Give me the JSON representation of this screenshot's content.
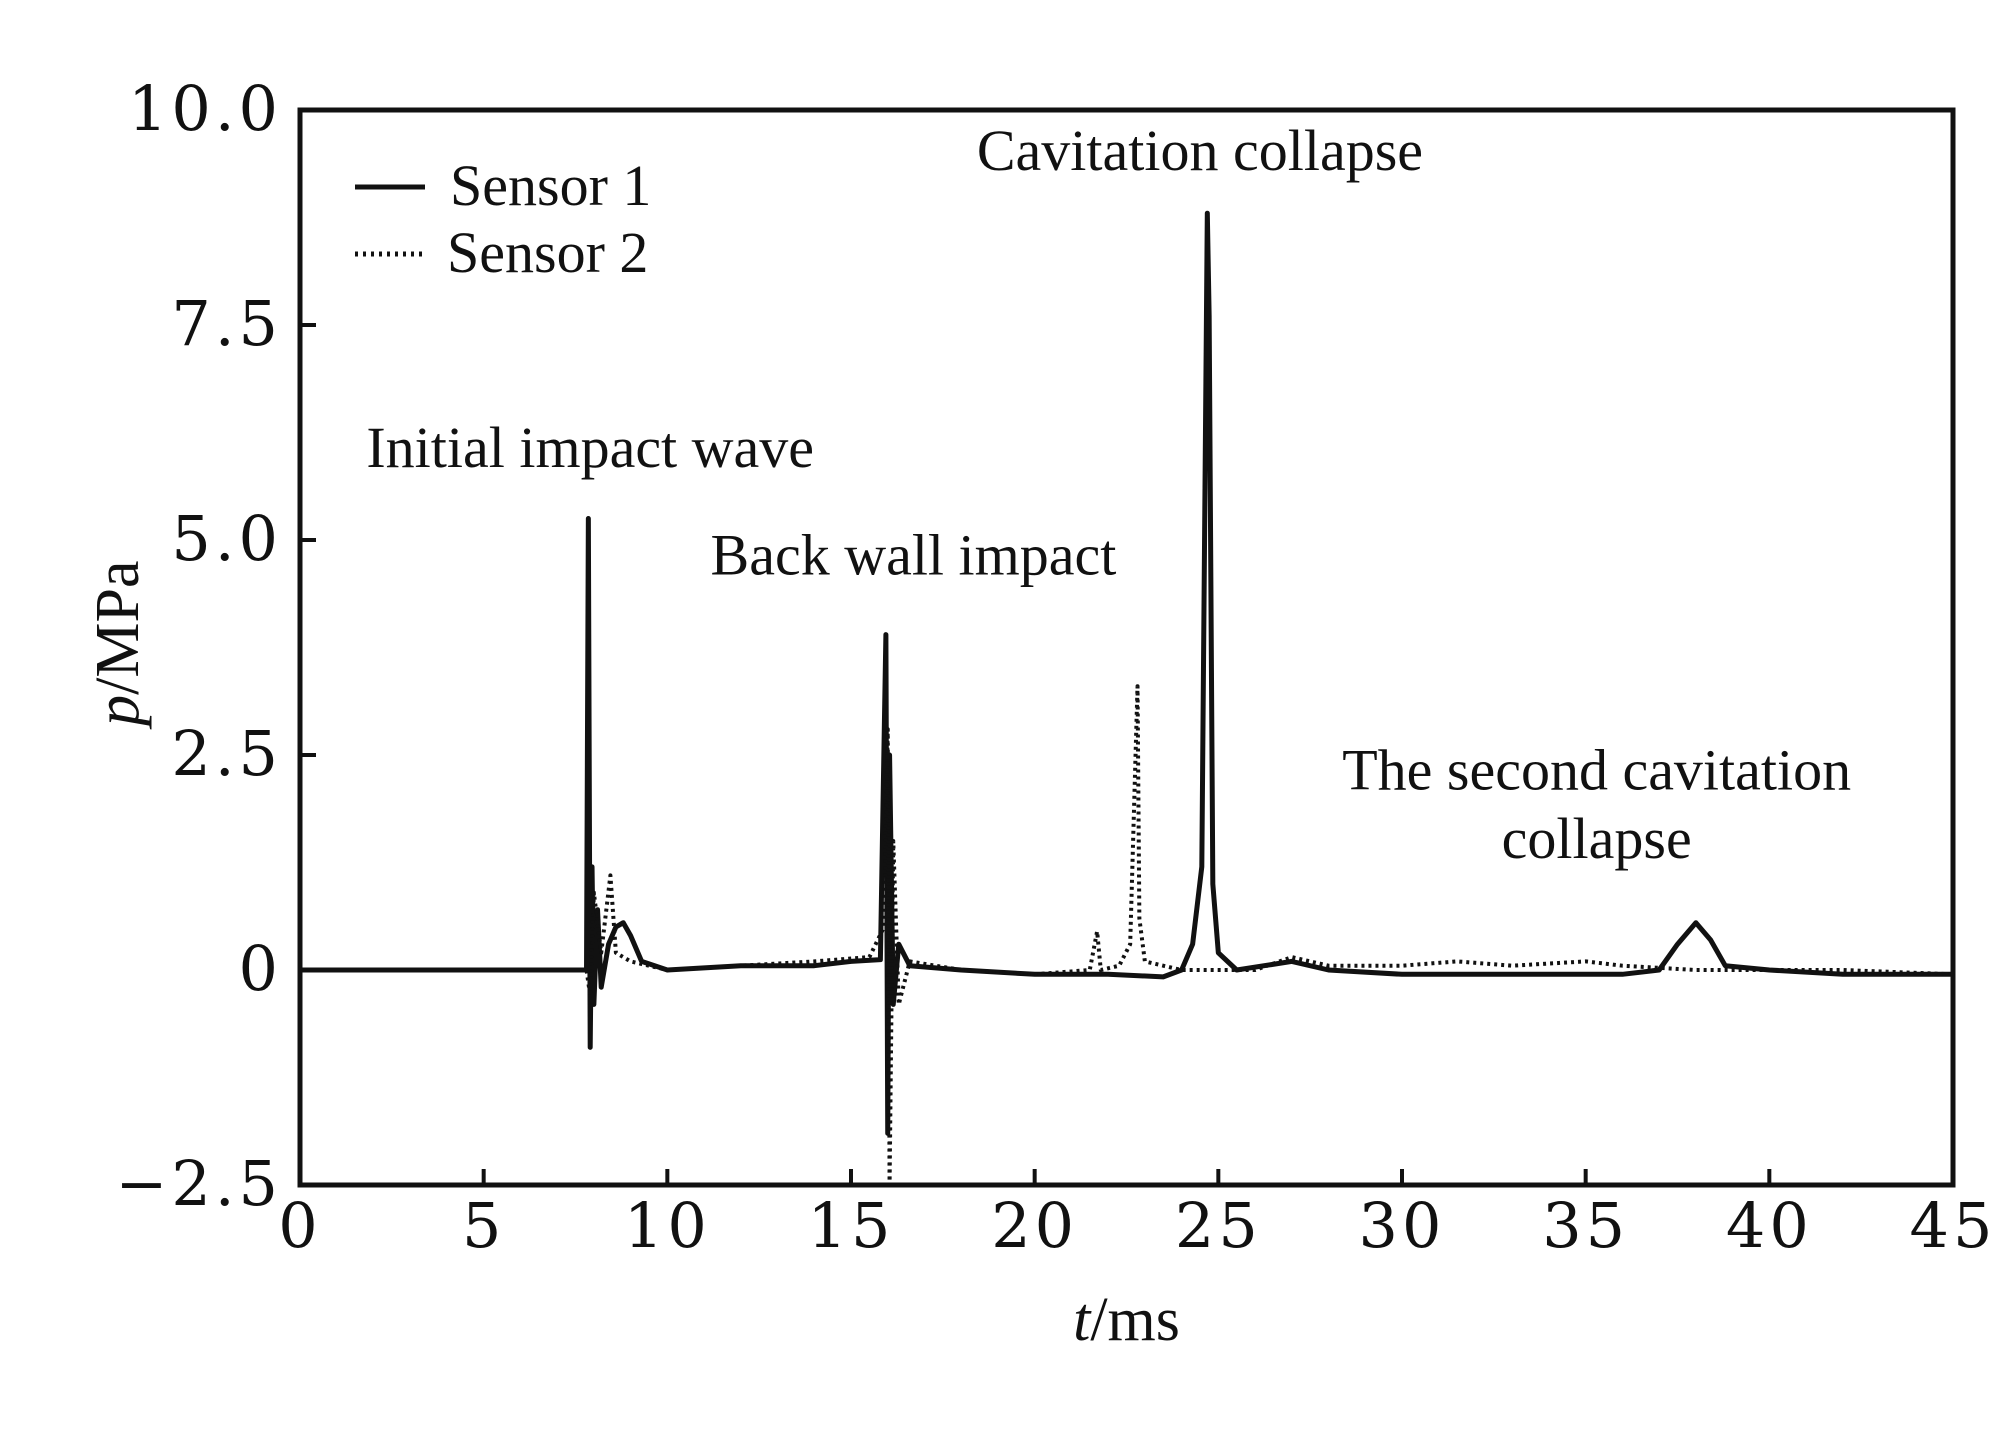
{
  "chart_data": {
    "type": "line",
    "title": "",
    "xlabel_var": "t",
    "xlabel_unit": "/ms",
    "ylabel_var": "p",
    "ylabel_unit": "/MPa",
    "xlim": [
      0,
      45
    ],
    "ylim": [
      -2.5,
      10.0
    ],
    "x_ticks": [
      0,
      5,
      10,
      15,
      20,
      25,
      30,
      35,
      40,
      45
    ],
    "x_tick_labels": [
      "0",
      "5",
      "10",
      "15",
      "20",
      "25",
      "30",
      "35",
      "40",
      "45"
    ],
    "y_ticks": [
      -2.5,
      0,
      2.5,
      5.0,
      7.5,
      10.0
    ],
    "y_tick_labels": [
      "−2.5",
      "0",
      "2.5",
      "5.0",
      "7.5",
      "10.0"
    ],
    "grid": false,
    "legend_position": "top-left",
    "series": [
      {
        "name": "Sensor 1",
        "style": "solid",
        "color": "#111111",
        "points": [
          [
            0,
            0
          ],
          [
            7.8,
            0
          ],
          [
            7.85,
            5.25
          ],
          [
            7.9,
            -0.9
          ],
          [
            7.95,
            1.2
          ],
          [
            8.0,
            -0.4
          ],
          [
            8.1,
            0.7
          ],
          [
            8.2,
            -0.2
          ],
          [
            8.4,
            0.3
          ],
          [
            8.6,
            0.5
          ],
          [
            8.8,
            0.55
          ],
          [
            9.0,
            0.4
          ],
          [
            9.3,
            0.1
          ],
          [
            10,
            0.0
          ],
          [
            12,
            0.05
          ],
          [
            14,
            0.05
          ],
          [
            15,
            0.1
          ],
          [
            15.8,
            0.12
          ],
          [
            15.95,
            3.9
          ],
          [
            16.0,
            -1.9
          ],
          [
            16.05,
            2.5
          ],
          [
            16.15,
            -0.4
          ],
          [
            16.3,
            0.3
          ],
          [
            16.6,
            0.05
          ],
          [
            18,
            0.0
          ],
          [
            20,
            -0.05
          ],
          [
            22,
            -0.05
          ],
          [
            23.5,
            -0.08
          ],
          [
            24.0,
            0.0
          ],
          [
            24.3,
            0.3
          ],
          [
            24.55,
            1.2
          ],
          [
            24.7,
            8.8
          ],
          [
            24.75,
            7.6
          ],
          [
            24.85,
            1.0
          ],
          [
            25.0,
            0.2
          ],
          [
            25.5,
            0.0
          ],
          [
            27,
            0.1
          ],
          [
            28,
            0.0
          ],
          [
            30,
            -0.05
          ],
          [
            32,
            -0.05
          ],
          [
            34,
            -0.05
          ],
          [
            36,
            -0.05
          ],
          [
            37,
            0.0
          ],
          [
            37.5,
            0.3
          ],
          [
            38.0,
            0.55
          ],
          [
            38.4,
            0.35
          ],
          [
            38.8,
            0.05
          ],
          [
            40,
            0.0
          ],
          [
            42,
            -0.05
          ],
          [
            45,
            -0.05
          ]
        ]
      },
      {
        "name": "Sensor 2",
        "style": "dotted",
        "color": "#111111",
        "points": [
          [
            0,
            0
          ],
          [
            7.8,
            0
          ],
          [
            7.9,
            -0.3
          ],
          [
            8.0,
            0.9
          ],
          [
            8.2,
            0.2
          ],
          [
            8.45,
            1.1
          ],
          [
            8.6,
            0.2
          ],
          [
            9.0,
            0.1
          ],
          [
            10,
            0.0
          ],
          [
            12,
            0.05
          ],
          [
            14,
            0.1
          ],
          [
            15.5,
            0.15
          ],
          [
            15.9,
            0.5
          ],
          [
            16.0,
            2.8
          ],
          [
            16.05,
            -2.5
          ],
          [
            16.15,
            1.5
          ],
          [
            16.3,
            -0.4
          ],
          [
            16.6,
            0.1
          ],
          [
            18,
            0.0
          ],
          [
            20,
            -0.05
          ],
          [
            21.5,
            0.0
          ],
          [
            21.7,
            0.45
          ],
          [
            21.8,
            0.0
          ],
          [
            22.3,
            0.05
          ],
          [
            22.6,
            0.3
          ],
          [
            22.8,
            3.3
          ],
          [
            22.85,
            0.6
          ],
          [
            23.0,
            0.1
          ],
          [
            24,
            0.0
          ],
          [
            26,
            0.0
          ],
          [
            27,
            0.15
          ],
          [
            28,
            0.05
          ],
          [
            30,
            0.05
          ],
          [
            31.5,
            0.1
          ],
          [
            33,
            0.05
          ],
          [
            35,
            0.1
          ],
          [
            36,
            0.05
          ],
          [
            38,
            0.0
          ],
          [
            40,
            0.0
          ],
          [
            42,
            0.0
          ],
          [
            45,
            -0.05
          ]
        ]
      }
    ],
    "annotations": [
      {
        "text": "Initial impact wave",
        "x": 7.9,
        "y": 5.85,
        "anchor": "middle"
      },
      {
        "text": "Back wall impact",
        "x": 16.7,
        "y": 4.6,
        "anchor": "middle"
      },
      {
        "text": "Cavitation collapse",
        "x": 24.5,
        "y": 9.3,
        "anchor": "middle"
      },
      {
        "text": "The second cavitation",
        "x": 35.3,
        "y": 2.1,
        "anchor": "middle"
      },
      {
        "text": "collapse",
        "x": 35.3,
        "y": 1.3,
        "anchor": "middle"
      }
    ]
  }
}
